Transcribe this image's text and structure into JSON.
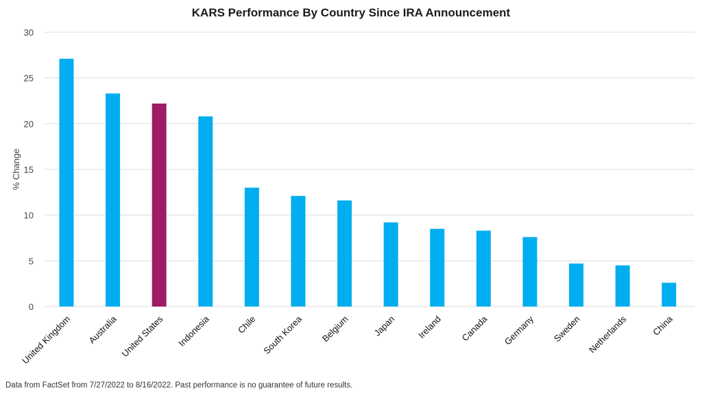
{
  "chart_data": {
    "type": "bar",
    "title": "KARS Performance By Country Since IRA Announcement",
    "xlabel": "",
    "ylabel": "% Change",
    "ylim": [
      0,
      30
    ],
    "yticks": [
      0,
      5,
      10,
      15,
      20,
      25,
      30
    ],
    "grid": true,
    "legend": "none",
    "categories": [
      "United Kingdom",
      "Australia",
      "United States",
      "Indonesia",
      "Chile",
      "South Korea",
      "Belgium",
      "Japan",
      "Ireland",
      "Canada",
      "Germany",
      "Sweden",
      "Netherlands",
      "China"
    ],
    "values": [
      27.1,
      23.3,
      22.2,
      20.8,
      13.0,
      12.1,
      11.6,
      9.2,
      8.5,
      8.3,
      7.6,
      4.7,
      4.5,
      2.6
    ],
    "colors": {
      "default_bar": "#00aeef",
      "highlight_bar": "#9e1c63",
      "highlight_category": "United States",
      "grid": "#dddddd"
    }
  },
  "footnote": "Data from FactSet from 7/27/2022 to 8/16/2022. Past performance is no guarantee of future results."
}
